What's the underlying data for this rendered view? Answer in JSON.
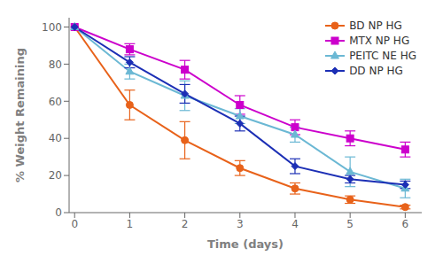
{
  "chart_data": {
    "type": "line",
    "xlabel": "Time (days)",
    "ylabel": "% Weight Remaining",
    "x": [
      0,
      1,
      2,
      3,
      4,
      5,
      6
    ],
    "series": [
      {
        "name": "BD NP HG",
        "color": "#E8621A",
        "marker": "circle",
        "values": [
          100,
          58,
          39,
          24,
          13,
          7,
          3
        ],
        "yerr": [
          0,
          8,
          10,
          4,
          3,
          2,
          1
        ]
      },
      {
        "name": "MTX NP HG",
        "color": "#CC00CC",
        "marker": "square",
        "values": [
          100,
          88,
          77,
          58,
          46,
          40,
          34
        ],
        "yerr": [
          0,
          3,
          5,
          5,
          4,
          4,
          4
        ]
      },
      {
        "name": "PEITC NE HG",
        "color": "#6BB8D4",
        "marker": "triangle",
        "values": [
          100,
          76,
          63,
          52,
          42,
          22,
          13
        ],
        "yerr": [
          0,
          4,
          8,
          4,
          4,
          8,
          5
        ]
      },
      {
        "name": "DD NP HG",
        "color": "#1C2FB5",
        "marker": "diamond",
        "values": [
          100,
          81,
          64,
          48,
          25,
          18,
          15
        ],
        "yerr": [
          0,
          3,
          5,
          4,
          4,
          2,
          2
        ]
      }
    ],
    "xlim": [
      -0.1,
      6.3
    ],
    "ylim": [
      0,
      105
    ],
    "xticks": [
      0,
      1,
      2,
      3,
      4,
      5,
      6
    ],
    "yticks": [
      0,
      20,
      40,
      60,
      80,
      100
    ],
    "grid": false,
    "legend": "upper right"
  }
}
